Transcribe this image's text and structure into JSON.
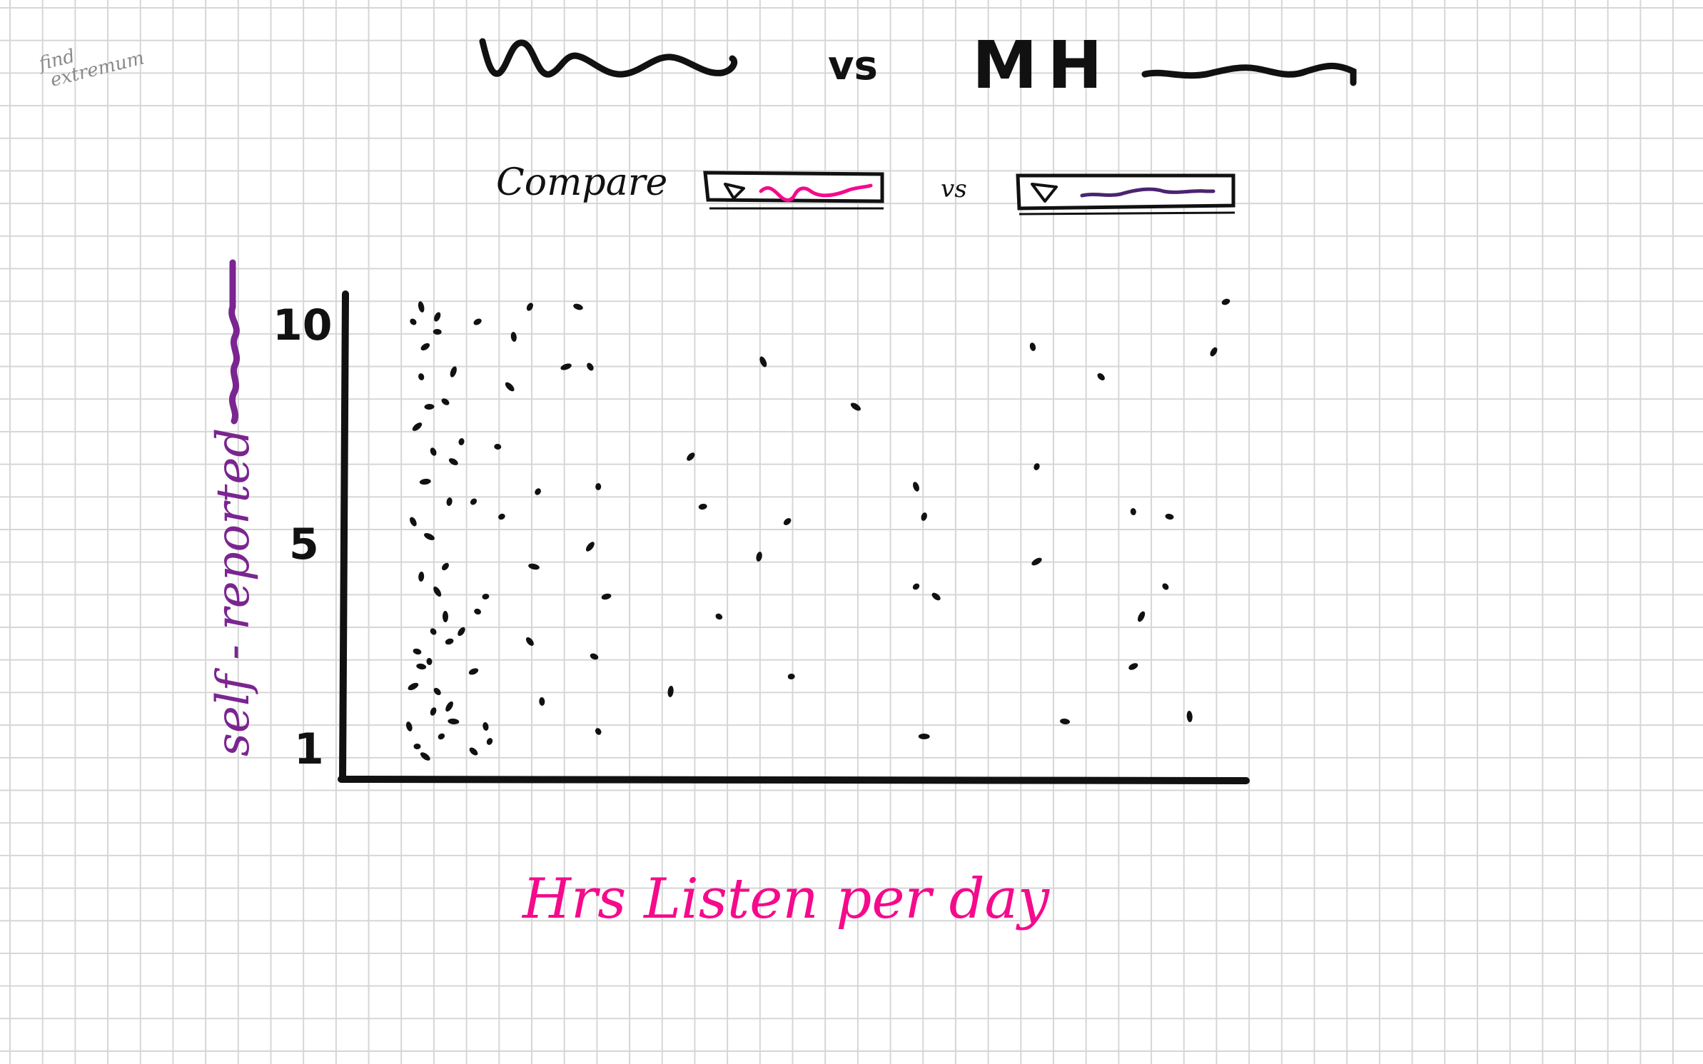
{
  "side_note": [
    "find",
    "extremum"
  ],
  "title": {
    "vs": "vs",
    "right": "MH"
  },
  "compare": {
    "label": "Compare",
    "vs": "vs"
  },
  "colors": {
    "pink": "#f50a8c",
    "purple": "#7b2590",
    "ink": "#111111",
    "grid": "#d6d6d6"
  },
  "icons": {
    "dropdown": "triangle-icon"
  },
  "chart_data": {
    "type": "scatter",
    "xlabel": "Hrs Listen per day",
    "ylabel": "self - reported",
    "y_tick_labels": [
      "10",
      "5",
      "1"
    ],
    "y_ticks": [
      10,
      5,
      1
    ],
    "ylim": [
      0,
      11
    ],
    "xlim": [
      0,
      22
    ],
    "grid": false,
    "points": [
      [
        1.5,
        1.2
      ],
      [
        1.7,
        1.0
      ],
      [
        1.3,
        1.6
      ],
      [
        1.9,
        1.9
      ],
      [
        2.1,
        1.4
      ],
      [
        2.4,
        1.7
      ],
      [
        2.9,
        1.1
      ],
      [
        3.2,
        1.6
      ],
      [
        3.3,
        1.3
      ],
      [
        1.4,
        2.4
      ],
      [
        1.6,
        2.8
      ],
      [
        2.0,
        2.3
      ],
      [
        1.8,
        2.9
      ],
      [
        2.3,
        2.0
      ],
      [
        2.9,
        2.7
      ],
      [
        1.5,
        3.1
      ],
      [
        1.9,
        3.5
      ],
      [
        2.2,
        3.8
      ],
      [
        2.6,
        3.5
      ],
      [
        2.3,
        3.3
      ],
      [
        3.0,
        3.9
      ],
      [
        2.0,
        4.3
      ],
      [
        1.6,
        4.6
      ],
      [
        2.2,
        4.8
      ],
      [
        3.2,
        4.2
      ],
      [
        1.8,
        5.4
      ],
      [
        1.4,
        5.7
      ],
      [
        2.3,
        6.1
      ],
      [
        2.9,
        6.1
      ],
      [
        1.7,
        6.5
      ],
      [
        2.4,
        6.9
      ],
      [
        1.9,
        7.1
      ],
      [
        2.6,
        7.3
      ],
      [
        1.5,
        7.6
      ],
      [
        1.8,
        8.0
      ],
      [
        2.2,
        8.1
      ],
      [
        1.6,
        8.6
      ],
      [
        2.4,
        8.7
      ],
      [
        1.7,
        9.2
      ],
      [
        2.0,
        9.5
      ],
      [
        1.4,
        9.7
      ],
      [
        1.6,
        10.0
      ],
      [
        2.0,
        9.8
      ],
      [
        3.0,
        9.7
      ],
      [
        3.5,
        7.2
      ],
      [
        3.8,
        8.4
      ],
      [
        3.9,
        9.4
      ],
      [
        4.3,
        10.0
      ],
      [
        3.6,
        5.8
      ],
      [
        4.4,
        4.8
      ],
      [
        4.3,
        3.3
      ],
      [
        4.6,
        2.1
      ],
      [
        4.5,
        6.3
      ],
      [
        5.2,
        8.8
      ],
      [
        5.5,
        10.0
      ],
      [
        5.8,
        8.8
      ],
      [
        6.0,
        6.4
      ],
      [
        5.8,
        5.2
      ],
      [
        6.2,
        4.2
      ],
      [
        5.9,
        3.0
      ],
      [
        6.0,
        1.5
      ],
      [
        7.8,
        2.3
      ],
      [
        8.3,
        7.0
      ],
      [
        8.6,
        6.0
      ],
      [
        9.0,
        3.8
      ],
      [
        10.1,
        8.9
      ],
      [
        10.0,
        5.0
      ],
      [
        10.7,
        5.7
      ],
      [
        10.8,
        2.6
      ],
      [
        12.4,
        8.0
      ],
      [
        13.9,
        6.4
      ],
      [
        14.1,
        5.8
      ],
      [
        13.9,
        4.4
      ],
      [
        14.1,
        1.4
      ],
      [
        14.4,
        4.2
      ],
      [
        16.8,
        9.2
      ],
      [
        16.9,
        6.8
      ],
      [
        16.9,
        4.9
      ],
      [
        17.6,
        1.7
      ],
      [
        18.5,
        8.6
      ],
      [
        19.3,
        5.9
      ],
      [
        19.5,
        3.8
      ],
      [
        19.3,
        2.8
      ],
      [
        20.2,
        5.8
      ],
      [
        20.1,
        4.4
      ],
      [
        20.7,
        1.8
      ],
      [
        21.3,
        9.1
      ],
      [
        21.6,
        10.1
      ]
    ]
  }
}
